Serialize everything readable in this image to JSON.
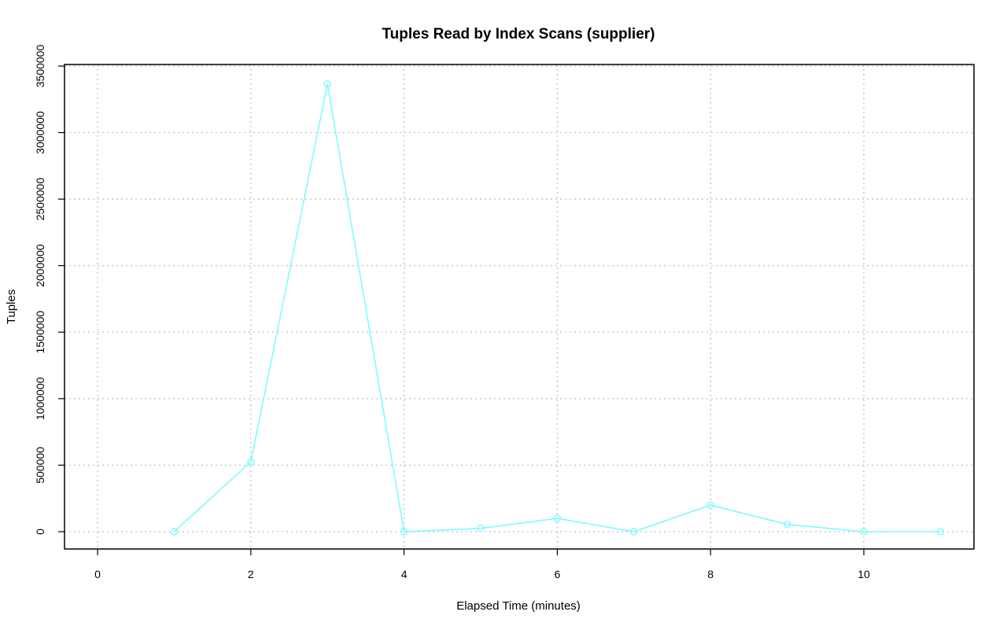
{
  "chart_data": {
    "type": "line",
    "title": "Tuples Read by Index Scans (supplier)",
    "xlabel": "Elapsed Time (minutes)",
    "ylabel": "Tuples",
    "xlim": [
      0,
      11
    ],
    "ylim": [
      0,
      3500000
    ],
    "x_ticks": [
      0,
      2,
      4,
      6,
      8,
      10
    ],
    "x_tick_labels": [
      "0",
      "2",
      "4",
      "6",
      "8",
      "10"
    ],
    "y_ticks": [
      0,
      500000,
      1000000,
      1500000,
      2000000,
      2500000,
      3000000,
      3500000
    ],
    "y_tick_labels": [
      "0",
      "500000",
      "1000000",
      "1500000",
      "2000000",
      "2500000",
      "3000000",
      "3500000"
    ],
    "grid": true,
    "series": [
      {
        "color": "#7ffaff",
        "marker": "circle",
        "x": [
          1,
          2,
          3,
          4,
          5,
          6,
          7,
          8,
          9,
          10,
          11
        ],
        "y": [
          0,
          525000,
          3365000,
          0,
          25000,
          100000,
          0,
          200000,
          55000,
          0,
          0
        ]
      }
    ]
  }
}
